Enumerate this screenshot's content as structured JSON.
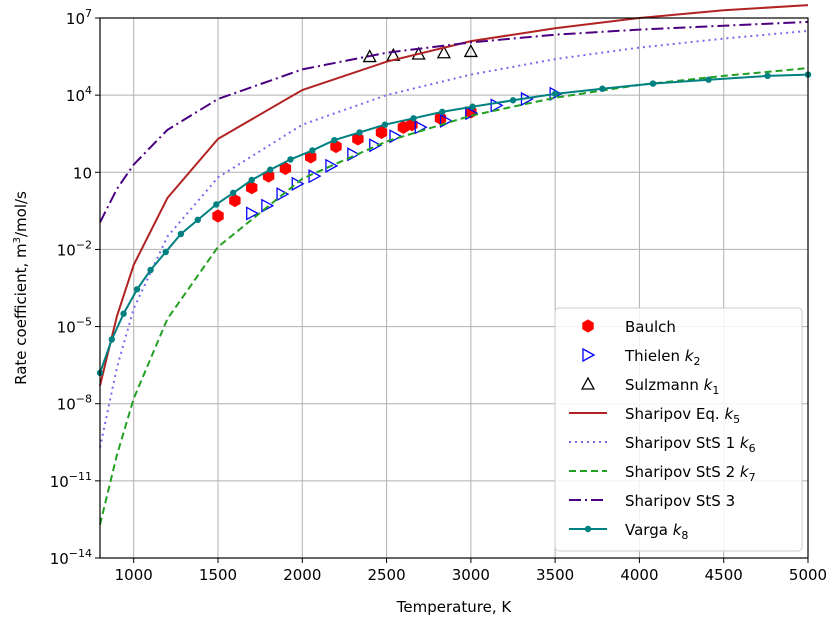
{
  "chart_data": {
    "type": "line",
    "title": "",
    "xlabel": "Temperature, K",
    "ylabel": "Rate coefficient, m³/mol/s",
    "ylabel_parts": {
      "pre": "Rate coefficient, m",
      "sup": "3",
      "post": "/mol/s"
    },
    "xlim": [
      800,
      5000
    ],
    "ylim_log10": [
      -14,
      7
    ],
    "yscale": "log",
    "grid": true,
    "legend_position": "lower-right",
    "x_ticks": [
      1000,
      1500,
      2000,
      2500,
      3000,
      3500,
      4000,
      4500,
      5000
    ],
    "x_tick_labels": [
      "1000",
      "1500",
      "2000",
      "2500",
      "3000",
      "3500",
      "4000",
      "4500",
      "5000"
    ],
    "y_tick_exponents": [
      -14,
      -11,
      -8,
      -5,
      -2,
      1,
      4,
      7
    ],
    "y_tick_labels": [
      {
        "base": "10",
        "exp": "−14"
      },
      {
        "base": "10",
        "exp": "−11"
      },
      {
        "base": "10",
        "exp": "−8"
      },
      {
        "base": "10",
        "exp": "−5"
      },
      {
        "base": "10",
        "exp": "−2"
      },
      {
        "base": "10",
        "exp": ""
      },
      {
        "base": "10",
        "exp": "4"
      },
      {
        "base": "10",
        "exp": "7"
      }
    ],
    "series": [
      {
        "name": "Baulch",
        "name_sub": "",
        "kind": "marker",
        "marker": "hexagon",
        "color": "#ff0000",
        "x": [
          1500,
          1600,
          1700,
          1800,
          1900,
          2050,
          2200,
          2330,
          2470,
          2600,
          2650,
          2820,
          3000
        ],
        "log10_y": [
          -0.7,
          -0.1,
          0.4,
          0.85,
          1.15,
          1.6,
          2.0,
          2.3,
          2.55,
          2.75,
          2.85,
          3.1,
          3.35
        ]
      },
      {
        "name": "Thielen ",
        "name_sub": "2",
        "kind": "marker",
        "marker": "triangle-right",
        "color": "#0000ff",
        "x": [
          1700,
          1790,
          1880,
          1970,
          2070,
          2170,
          2300,
          2430,
          2550,
          2700,
          2850,
          3000,
          3150,
          3330,
          3500
        ],
        "log10_y": [
          -0.6,
          -0.3,
          0.15,
          0.55,
          0.85,
          1.25,
          1.7,
          2.05,
          2.4,
          2.75,
          3.0,
          3.3,
          3.6,
          3.85,
          4.05
        ]
      },
      {
        "name": "Sulzmann ",
        "name_sub": "1",
        "kind": "marker",
        "marker": "triangle-up",
        "color": "#000000",
        "x": [
          2400,
          2540,
          2690,
          2840,
          3000
        ],
        "log10_y": [
          5.5,
          5.55,
          5.6,
          5.65,
          5.7
        ]
      },
      {
        "name": "Sharipov Eq. ",
        "name_sub": "5",
        "kind": "line",
        "dash": "",
        "color": "#b22222",
        "x": [
          800,
          900,
          1000,
          1200,
          1500,
          2000,
          2500,
          3000,
          3500,
          4000,
          4500,
          5000
        ],
        "log10_y": [
          -7.3,
          -4.6,
          -2.6,
          0.0,
          2.3,
          4.2,
          5.3,
          6.1,
          6.6,
          7.0,
          7.3,
          7.5
        ]
      },
      {
        "name": "Sharipov StS 1 ",
        "name_sub": "6",
        "kind": "line",
        "dash": "2,4",
        "color": "#7b68ee",
        "x": [
          800,
          900,
          1000,
          1200,
          1500,
          2000,
          2500,
          3000,
          3500,
          4000,
          4500,
          5000
        ],
        "log10_y": [
          -9.7,
          -6.6,
          -4.3,
          -1.5,
          0.8,
          2.85,
          4.0,
          4.8,
          5.4,
          5.85,
          6.2,
          6.5
        ]
      },
      {
        "name": "Sharipov StS 2 ",
        "name_sub": "7",
        "kind": "line",
        "dash": "7,4",
        "color": "#22a022",
        "x": [
          800,
          900,
          1000,
          1200,
          1500,
          2000,
          2500,
          3000,
          3500,
          4000,
          4500,
          5000
        ],
        "log10_y": [
          -12.7,
          -10.0,
          -7.8,
          -4.7,
          -1.9,
          0.75,
          2.2,
          3.2,
          3.9,
          4.4,
          4.75,
          5.05
        ]
      },
      {
        "name": "Sharipov StS 3",
        "name_sub": "",
        "kind": "line",
        "dash": "12,4,2,4",
        "color": "#4b0082",
        "x": [
          800,
          900,
          1000,
          1200,
          1500,
          2000,
          2500,
          3000,
          3500,
          4000,
          4500,
          5000
        ],
        "log10_y": [
          -0.95,
          0.35,
          1.3,
          2.65,
          3.85,
          5.0,
          5.65,
          6.05,
          6.35,
          6.55,
          6.7,
          6.85
        ]
      },
      {
        "name": "Varga ",
        "name_sub": "8",
        "kind": "line+marker",
        "dash": "",
        "color": "#008080",
        "x": [
          800,
          870,
          940,
          1020,
          1100,
          1190,
          1280,
          1380,
          1490,
          1590,
          1700,
          1810,
          1930,
          2060,
          2190,
          2340,
          2490,
          2660,
          2830,
          3010,
          3250,
          3500,
          3780,
          4080,
          4410,
          4760,
          5000
        ],
        "log10_y": [
          -6.8,
          -5.5,
          -4.5,
          -3.55,
          -2.8,
          -2.1,
          -1.4,
          -0.85,
          -0.25,
          0.2,
          0.7,
          1.1,
          1.5,
          1.85,
          2.25,
          2.55,
          2.85,
          3.1,
          3.35,
          3.55,
          3.8,
          4.05,
          4.25,
          4.45,
          4.6,
          4.75,
          4.8
        ]
      }
    ]
  }
}
